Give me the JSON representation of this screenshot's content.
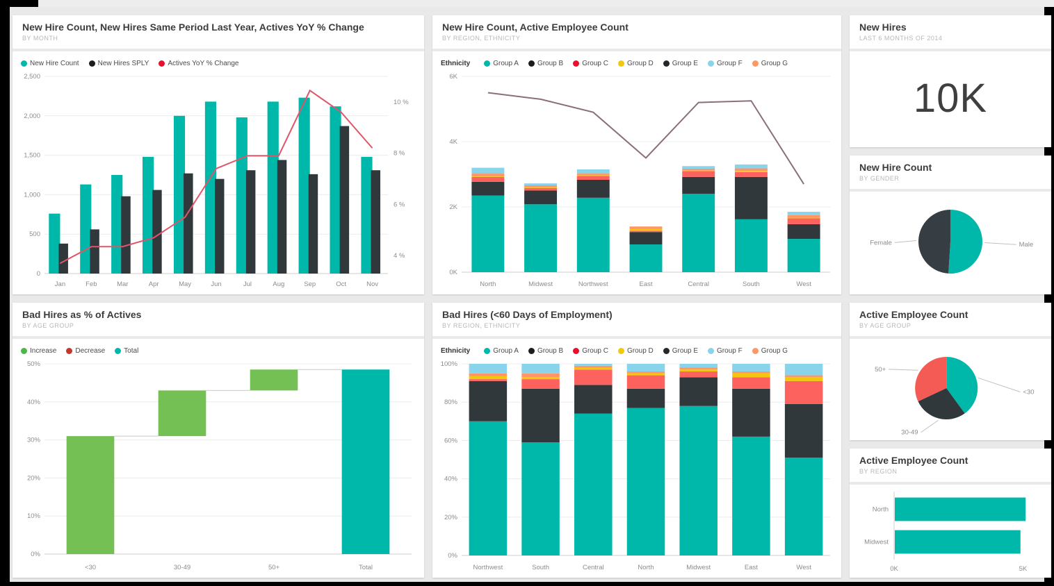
{
  "colors": {
    "teal": "#00B8AA",
    "dark": "#31383C",
    "red": "#FD625E",
    "yellow": "#F2C80F",
    "light_blue": "#8AD4EB",
    "orange": "#FE9666",
    "green_increase": "#74C054",
    "red_decrease": "#C0392B",
    "line_red": "#E0556A",
    "line_mauve": "#8A6E7E"
  },
  "cards": {
    "combo": {
      "title": "New Hire Count, New Hires Same Period Last Year, Actives YoY % Change",
      "subtitle": "BY MONTH"
    },
    "region": {
      "title": "New Hire Count, Active Employee Count",
      "subtitle": "BY REGION, ETHNICITY"
    },
    "kpi": {
      "title": "New Hires",
      "subtitle": "LAST 6 MONTHS OF 2014",
      "value": "10K"
    },
    "gender": {
      "title": "New Hire Count",
      "subtitle": "BY GENDER"
    },
    "waterfall": {
      "title": "Bad Hires as % of Actives",
      "subtitle": "BY AGE GROUP"
    },
    "badhires": {
      "title": "Bad Hires (<60 Days of Employment)",
      "subtitle": "BY REGION, ETHNICITY"
    },
    "agepie": {
      "title": "Active Employee Count",
      "subtitle": "BY AGE GROUP"
    },
    "regionbar": {
      "title": "Active Employee Count",
      "subtitle": "BY REGION"
    }
  },
  "chart_data": [
    {
      "id": "new-hires-month",
      "type": "combo",
      "title": "New Hire Count, New Hires Same Period Last Year, Actives YoY % Change",
      "categories": [
        "Jan",
        "Feb",
        "Mar",
        "Apr",
        "May",
        "Jun",
        "Jul",
        "Aug",
        "Sep",
        "Oct",
        "Nov"
      ],
      "series": [
        {
          "name": "New Hire Count",
          "color": "#00B8AA",
          "values": [
            760,
            1130,
            1250,
            1480,
            2000,
            2180,
            1980,
            2180,
            2230,
            2120,
            1480
          ]
        },
        {
          "name": "New Hires SPLY",
          "color": "#31383C",
          "values": [
            380,
            560,
            980,
            1060,
            1270,
            1200,
            1310,
            1440,
            1260,
            1870,
            1310
          ]
        }
      ],
      "line": {
        "name": "Actives YoY % Change",
        "color": "#E0556A",
        "values": [
          3.7,
          4.35,
          4.35,
          4.7,
          5.5,
          7.4,
          7.9,
          7.9,
          10.45,
          9.6,
          8.2
        ],
        "ylim": [
          3.3,
          11.0
        ],
        "ticks": [
          {
            "v": 4,
            "l": "4 %"
          },
          {
            "v": 6,
            "l": "6 %"
          },
          {
            "v": 8,
            "l": "8 %"
          },
          {
            "v": 10,
            "l": "10 %"
          }
        ]
      },
      "ylim": [
        0,
        2500
      ],
      "yticks": [
        {
          "v": 0,
          "l": "0"
        },
        {
          "v": 500,
          "l": "500"
        },
        {
          "v": 1000,
          "l": "1,000"
        },
        {
          "v": 1500,
          "l": "1,500"
        },
        {
          "v": 2000,
          "l": "2,000"
        },
        {
          "v": 2500,
          "l": "2,500"
        }
      ],
      "legend": {
        "items": [
          {
            "label": "New Hire Count",
            "color": "#00B8AA"
          },
          {
            "label": "New Hires SPLY",
            "color": "#1d1d1d"
          },
          {
            "label": "Actives YoY % Change",
            "color": "#E8112D"
          }
        ]
      }
    },
    {
      "id": "count-region-ethnicity",
      "type": "stacked",
      "title": "New Hire Count, Active Employee Count",
      "categories": [
        "North",
        "Midwest",
        "Northwest",
        "East",
        "Central",
        "South",
        "West"
      ],
      "unit": "K",
      "segments": [
        {
          "name": "Group A",
          "color": "#00B8AA",
          "values": [
            2.35,
            2.08,
            2.28,
            0.85,
            2.4,
            1.62,
            1.02
          ]
        },
        {
          "name": "Group B",
          "color": "#31383C",
          "values": [
            0.42,
            0.42,
            0.55,
            0.38,
            0.52,
            1.3,
            0.45
          ]
        },
        {
          "name": "Group C",
          "color": "#FD625E",
          "values": [
            0.15,
            0.08,
            0.12,
            0.04,
            0.18,
            0.15,
            0.18
          ]
        },
        {
          "name": "Group D",
          "color": "#F2C80F",
          "values": [
            0.02,
            0.02,
            0.02,
            0.05,
            0.02,
            0.03,
            0.02
          ]
        },
        {
          "name": "Group G",
          "color": "#FE9666",
          "values": [
            0.08,
            0.06,
            0.05,
            0.08,
            0.05,
            0.08,
            0.08
          ]
        },
        {
          "name": "Group F",
          "color": "#8AD4EB",
          "values": [
            0.18,
            0.06,
            0.13,
            0.0,
            0.08,
            0.12,
            0.1
          ]
        }
      ],
      "line": {
        "name": "Active Employee Count",
        "color": "#8A6E7E",
        "values": [
          5.5,
          5.3,
          4.9,
          3.5,
          5.2,
          5.25,
          2.7
        ]
      },
      "ylim": [
        0,
        6
      ],
      "yticks": [
        {
          "v": 0,
          "l": "0K"
        },
        {
          "v": 2,
          "l": "2K"
        },
        {
          "v": 4,
          "l": "4K"
        },
        {
          "v": 6,
          "l": "6K"
        }
      ],
      "bar_frac": 0.62,
      "legend": {
        "title": "Ethnicity",
        "items": [
          {
            "label": "Group A",
            "color": "#00B8AA"
          },
          {
            "label": "Group B",
            "color": "#1d1d1d"
          },
          {
            "label": "Group C",
            "color": "#E8112D"
          },
          {
            "label": "Group D",
            "color": "#F2C80F"
          },
          {
            "label": "Group E",
            "color": "#22282B"
          },
          {
            "label": "Group F",
            "color": "#8AD4EB"
          },
          {
            "label": "Group G",
            "color": "#FE9666"
          }
        ]
      }
    },
    {
      "id": "kpi-new-hires",
      "type": "kpi",
      "title": "New Hires",
      "value": "10K"
    },
    {
      "id": "new-hire-gender",
      "type": "pie",
      "title": "New Hire Count by Gender",
      "cx": 0.5,
      "cy": 0.5,
      "r": 46,
      "slices": [
        {
          "label": "Male",
          "value": 51,
          "color": "#00B8AA",
          "lx": 0.84,
          "ly": 0.55,
          "anchor": "start"
        },
        {
          "label": "Female",
          "value": 49,
          "color": "#363E43",
          "lx": 0.21,
          "ly": 0.53,
          "anchor": "end"
        }
      ]
    },
    {
      "id": "bad-hires-waterfall",
      "type": "waterfall",
      "title": "Bad Hires as % of Actives by Age Group",
      "categories": [
        "<30",
        "30-49",
        "50+",
        "Total"
      ],
      "steps": [
        {
          "label": "<30",
          "from": 0,
          "to": 31,
          "color": "#74C054"
        },
        {
          "label": "30-49",
          "from": 31,
          "to": 43,
          "color": "#74C054"
        },
        {
          "label": "50+",
          "from": 43,
          "to": 48.5,
          "color": "#74C054"
        },
        {
          "label": "Total",
          "from": 0,
          "to": 48.5,
          "color": "#00B8AA"
        }
      ],
      "ylim": [
        0,
        50
      ],
      "yticks": [
        {
          "v": 0,
          "l": "0%"
        },
        {
          "v": 10,
          "l": "10%"
        },
        {
          "v": 20,
          "l": "20%"
        },
        {
          "v": 30,
          "l": "30%"
        },
        {
          "v": 40,
          "l": "40%"
        },
        {
          "v": 50,
          "l": "50%"
        }
      ],
      "legend": {
        "items": [
          {
            "label": "Increase",
            "color": "#4CB748"
          },
          {
            "label": "Decrease",
            "color": "#C0392B"
          },
          {
            "label": "Total",
            "color": "#00B8AA"
          }
        ]
      }
    },
    {
      "id": "bad-hires-region",
      "type": "stacked",
      "title": "Bad Hires (<60 Days of Employment) by Region, Ethnicity",
      "categories": [
        "Northwest",
        "South",
        "Central",
        "North",
        "Midwest",
        "East",
        "West"
      ],
      "unit": "%",
      "segments": [
        {
          "name": "Group A",
          "color": "#00B8AA",
          "values": [
            70,
            59,
            74,
            77,
            78,
            62,
            51
          ]
        },
        {
          "name": "Group B",
          "color": "#31383C",
          "values": [
            21,
            28,
            15,
            10,
            15,
            25,
            28
          ]
        },
        {
          "name": "Group C",
          "color": "#FD625E",
          "values": [
            1,
            5,
            8,
            7,
            3,
            6,
            12
          ]
        },
        {
          "name": "Group D",
          "color": "#F2C80F",
          "values": [
            1.5,
            1,
            1,
            1,
            1,
            2,
            2
          ]
        },
        {
          "name": "Group G",
          "color": "#FE9666",
          "values": [
            1.5,
            2,
            1,
            1,
            1,
            1,
            1
          ]
        },
        {
          "name": "Group F",
          "color": "#8AD4EB",
          "values": [
            5,
            5,
            1,
            4,
            2,
            4,
            6
          ]
        }
      ],
      "ylim": [
        0,
        100
      ],
      "yticks": [
        {
          "v": 0,
          "l": "0%"
        },
        {
          "v": 20,
          "l": "20%"
        },
        {
          "v": 40,
          "l": "40%"
        },
        {
          "v": 60,
          "l": "60%"
        },
        {
          "v": 80,
          "l": "80%"
        },
        {
          "v": 100,
          "l": "100%"
        }
      ],
      "bar_frac": 0.72,
      "legend": {
        "title": "Ethnicity",
        "items": [
          {
            "label": "Group A",
            "color": "#00B8AA"
          },
          {
            "label": "Group B",
            "color": "#1d1d1d"
          },
          {
            "label": "Group C",
            "color": "#E8112D"
          },
          {
            "label": "Group D",
            "color": "#F2C80F"
          },
          {
            "label": "Group E",
            "color": "#22282B"
          },
          {
            "label": "Group F",
            "color": "#8AD4EB"
          },
          {
            "label": "Group G",
            "color": "#FE9666"
          }
        ]
      }
    },
    {
      "id": "active-age-pie",
      "type": "pie",
      "title": "Active Employee Count by Age Group",
      "cx": 0.48,
      "cy": 0.5,
      "r": 45,
      "slices": [
        {
          "label": "<30",
          "value": 40,
          "color": "#00B8AA",
          "lx": 0.86,
          "ly": 0.56,
          "anchor": "start"
        },
        {
          "label": "30-49",
          "value": 28,
          "color": "#31383C",
          "lx": 0.34,
          "ly": 0.97,
          "anchor": "end"
        },
        {
          "label": "50+",
          "value": 32,
          "color": "#F45B55",
          "lx": 0.18,
          "ly": 0.33,
          "anchor": "end"
        }
      ]
    },
    {
      "id": "active-region-bar",
      "type": "hbar",
      "title": "Active Employee Count by Region",
      "categories": [
        "North",
        "Midwest"
      ],
      "values": [
        5.1,
        4.9
      ],
      "color": "#00B8AA",
      "xlim": [
        0,
        5.5
      ],
      "xticks": [
        {
          "v": 0,
          "l": "0K"
        },
        {
          "v": 5,
          "l": "5K"
        }
      ]
    }
  ]
}
